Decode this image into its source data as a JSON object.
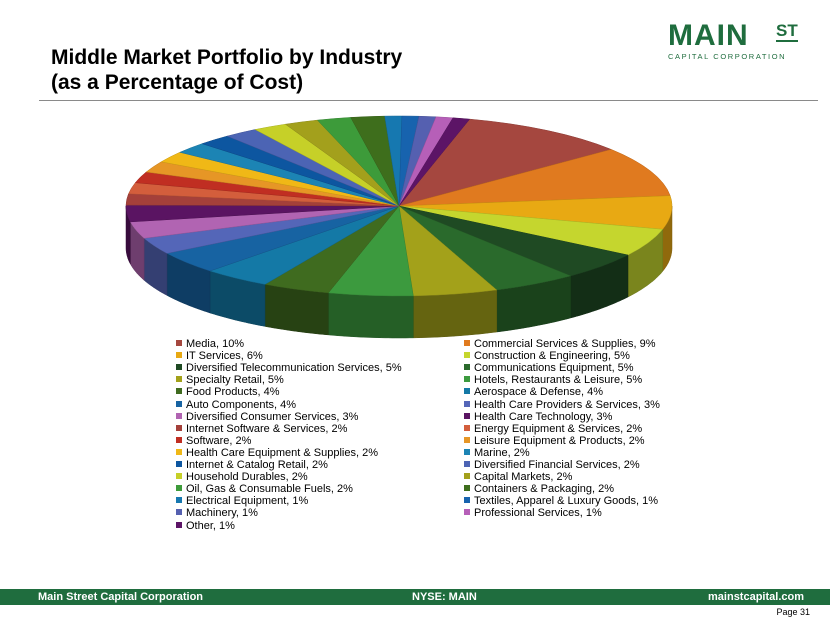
{
  "header": {
    "title_line1": "Middle Market Portfolio by Industry",
    "title_line2": "(as a Percentage of Cost)"
  },
  "logo": {
    "main": "MAIN",
    "st": "ST",
    "sub": "CAPITAL CORPORATION"
  },
  "chart_data": {
    "type": "pie",
    "three_d": true,
    "legend_position": "bottom",
    "slices": [
      {
        "label": "Media, 10%",
        "value": 10,
        "color": "#a5473f"
      },
      {
        "label": "Commercial Services & Supplies, 9%",
        "value": 9,
        "color": "#e07a1f"
      },
      {
        "label": "IT Services, 6%",
        "value": 6,
        "color": "#e8a913"
      },
      {
        "label": "Construction & Engineering, 5%",
        "value": 5,
        "color": "#c5d62e"
      },
      {
        "label": "Diversified Telecommunication Services, 5%",
        "value": 5,
        "color": "#1f4a23"
      },
      {
        "label": "Communications Equipment, 5%",
        "value": 5,
        "color": "#2a6a2c"
      },
      {
        "label": "Specialty Retail, 5%",
        "value": 5,
        "color": "#a3a11a"
      },
      {
        "label": "Hotels, Restaurants & Leisure, 5%",
        "value": 5,
        "color": "#3c9a3e"
      },
      {
        "label": "Food Products, 4%",
        "value": 4,
        "color": "#3f6b1f"
      },
      {
        "label": "Aerospace & Defense, 4%",
        "value": 4,
        "color": "#1479a6"
      },
      {
        "label": "Auto Components, 4%",
        "value": 4,
        "color": "#1763a2"
      },
      {
        "label": "Health Care Providers & Services, 3%",
        "value": 3,
        "color": "#5466b8"
      },
      {
        "label": "Diversified Consumer Services, 3%",
        "value": 3,
        "color": "#b164b2"
      },
      {
        "label": "Health Care Technology, 3%",
        "value": 3,
        "color": "#5a1462"
      },
      {
        "label": "Internet Software & Services, 2%",
        "value": 2,
        "color": "#a4403a"
      },
      {
        "label": "Energy Equipment & Services, 2%",
        "value": 2,
        "color": "#d35e3c"
      },
      {
        "label": "Software, 2%",
        "value": 2,
        "color": "#c02e22"
      },
      {
        "label": "Leisure Equipment & Products, 2%",
        "value": 2,
        "color": "#e69626"
      },
      {
        "label": "Health Care Equipment & Supplies, 2%",
        "value": 2,
        "color": "#f0b816"
      },
      {
        "label": "Marine, 2%",
        "value": 2,
        "color": "#1c84b4"
      },
      {
        "label": "Internet & Catalog Retail, 2%",
        "value": 2,
        "color": "#0d56a0"
      },
      {
        "label": "Diversified Financial Services, 2%",
        "value": 2,
        "color": "#4c64b4"
      },
      {
        "label": "Household Durables, 2%",
        "value": 2,
        "color": "#c6d028"
      },
      {
        "label": "Capital Markets, 2%",
        "value": 2,
        "color": "#a3a01c"
      },
      {
        "label": "Oil, Gas & Consumable Fuels, 2%",
        "value": 2,
        "color": "#3d9b3a"
      },
      {
        "label": "Containers & Packaging, 2%",
        "value": 2,
        "color": "#3e6e1c"
      },
      {
        "label": "Electrical Equipment, 1%",
        "value": 1,
        "color": "#1678b0"
      },
      {
        "label": "Textiles, Apparel & Luxury Goods, 1%",
        "value": 1,
        "color": "#1763ae"
      },
      {
        "label": "Machinery, 1%",
        "value": 1,
        "color": "#5560b0"
      },
      {
        "label": "Professional Services, 1%",
        "value": 1,
        "color": "#b65fb8"
      },
      {
        "label": "Other, 1%",
        "value": 1,
        "color": "#5c1466"
      }
    ]
  },
  "footer": {
    "company": "Main Street Capital Corporation",
    "ticker": "NYSE: MAIN",
    "website": "mainstcapital.com",
    "page_label": "Page  31"
  }
}
